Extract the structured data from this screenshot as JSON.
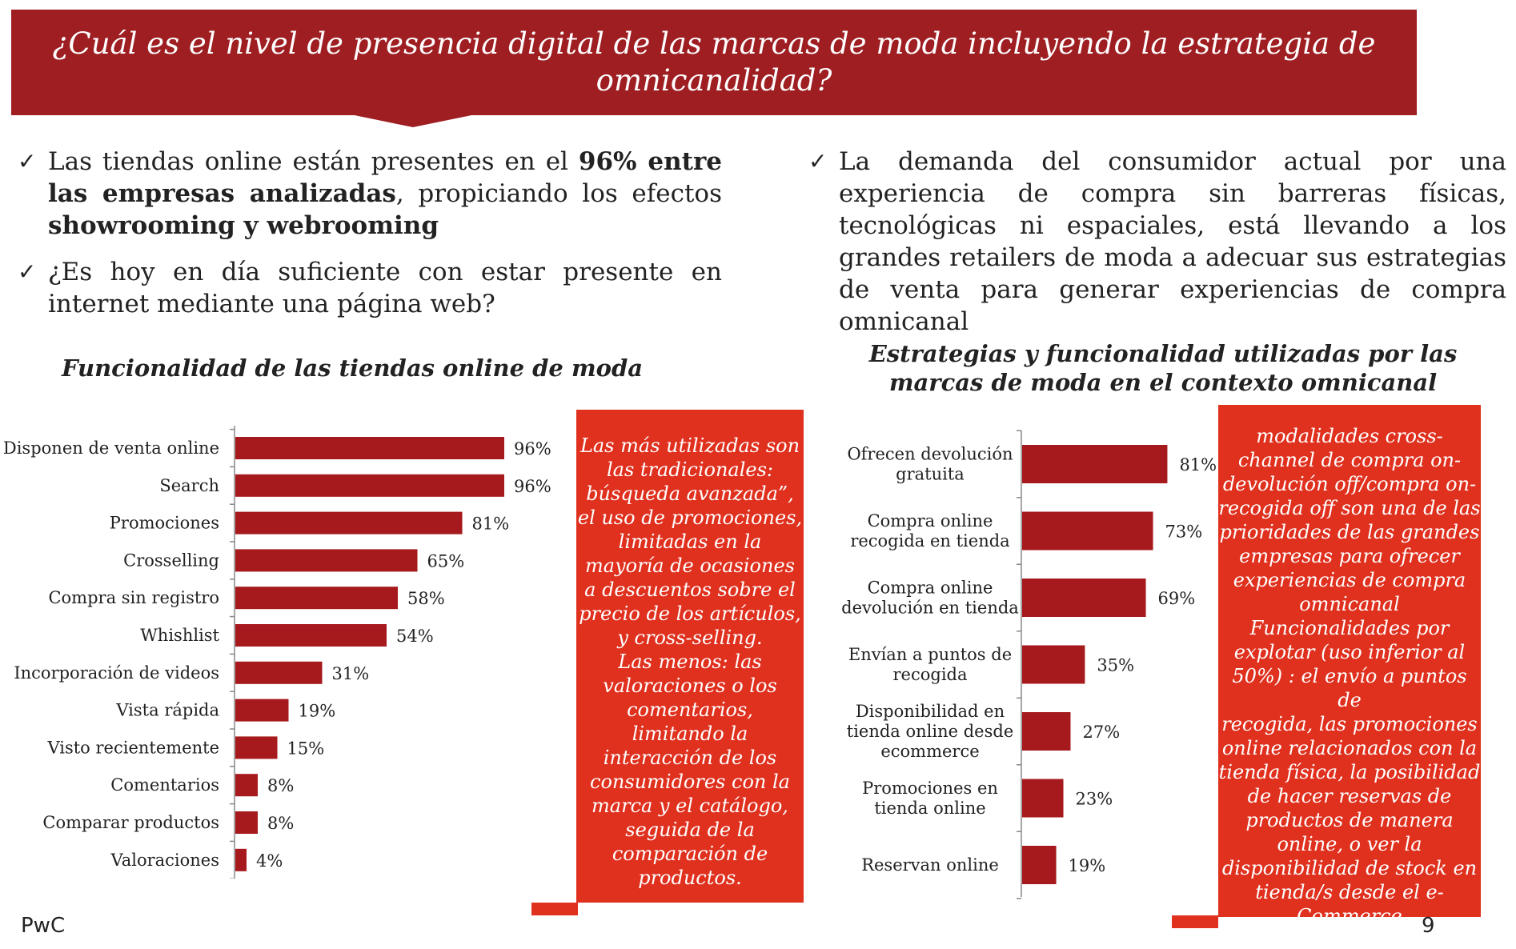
{
  "header": {
    "title_line1": "¿Cuál es el nivel de presencia digital de las marcas de moda incluyendo la estrategia de",
    "title_line2": "omnicanalidad?"
  },
  "left_bullets": {
    "b1_a": "Las tiendas online están presentes en el ",
    "b1_bold1": "96% entre las empresas analizadas",
    "b1_b": ", propiciando los efectos ",
    "b1_bold2": "showrooming y webrooming",
    "b2": "¿Es hoy en día suficiente con estar presente en internet mediante una página web?"
  },
  "right_bullets": {
    "b1": "La demanda del consumidor actual por una experiencia de compra sin barreras físicas, tecnológicas ni espaciales, está llevando a los grandes retailers de moda a adecuar sus estrategias de venta para generar experiencias de compra omnicanal"
  },
  "icons": {
    "bullet": "check-icon",
    "bullet_glyph": "✓"
  },
  "colors": {
    "banner": "#9e1e22",
    "bar": "#a6191d",
    "callout": "#e0301e"
  },
  "chart_data": [
    {
      "type": "bar",
      "orientation": "horizontal",
      "title": "Funcionalidad de las tiendas online de moda",
      "categories": [
        "Disponen de venta online",
        "Search",
        "Promociones",
        "Crosselling",
        "Compra sin registro",
        "Whishlist",
        "Incorporación de videos",
        "Vista rápida",
        "Visto recientemente",
        "Comentarios",
        "Comparar productos",
        "Valoraciones"
      ],
      "values": [
        96,
        96,
        81,
        65,
        58,
        54,
        31,
        19,
        15,
        8,
        8,
        4
      ],
      "value_labels": [
        "96%",
        "96%",
        "81%",
        "65%",
        "58%",
        "54%",
        "31%",
        "19%",
        "15%",
        "8%",
        "8%",
        "4%"
      ],
      "unit": "%",
      "xlim": [
        0,
        100
      ],
      "grid": false,
      "legend": "none"
    },
    {
      "type": "bar",
      "orientation": "horizontal",
      "title": "Estrategias y funcionalidad utilizadas por las marcas de moda en el contexto omnicanal",
      "categories": [
        [
          "Ofrecen devolución",
          "gratuita"
        ],
        [
          "Compra online",
          "recogida en tienda"
        ],
        [
          "Compra online",
          "devolución en tienda"
        ],
        [
          "Envían a puntos de",
          "recogida"
        ],
        [
          "Disponibilidad en",
          "tienda online desde",
          "ecommerce"
        ],
        [
          "Promociones en",
          "tienda online"
        ],
        [
          "Reservan online"
        ]
      ],
      "values": [
        81,
        73,
        69,
        35,
        27,
        23,
        19
      ],
      "value_labels": [
        "81%",
        "73%",
        "69%",
        "35%",
        "27%",
        "23%",
        "19%"
      ],
      "unit": "%",
      "xlim": [
        0,
        100
      ],
      "grid": false,
      "legend": "none"
    }
  ],
  "callout_left": {
    "lines": [
      "Las más utilizadas son",
      "las tradicionales:",
      "búsqueda avanzada”,",
      "el uso de promociones,",
      "limitadas en la",
      "mayoría de ocasiones",
      "a descuentos sobre el",
      "precio de los artículos,",
      "y cross-selling.",
      "Las menos: las",
      "valoraciones o los",
      "comentarios,",
      "limitando la",
      "interacción de los",
      "consumidores con la",
      "marca y el catálogo,",
      "seguida de la",
      "comparación de",
      "productos."
    ]
  },
  "callout_right": {
    "lines": [
      "modalidades cross-",
      "channel de compra on-",
      "devolución off/compra on-",
      "recogida off son una de las",
      "prioridades de las grandes",
      "empresas para ofrecer",
      "experiencias de compra",
      "omnicanal",
      "Funcionalidades por",
      "explotar (uso inferior al",
      "50%) : el envío a puntos de",
      "recogida, las promociones",
      "online relacionados con la",
      "tienda física, la posibilidad",
      "de hacer reservas de",
      "productos de manera",
      "online, o ver la",
      "disponibilidad de stock en",
      "tienda/s desde el e-",
      "Commerce"
    ]
  },
  "footer": {
    "brand": "PwC",
    "page": "9"
  }
}
